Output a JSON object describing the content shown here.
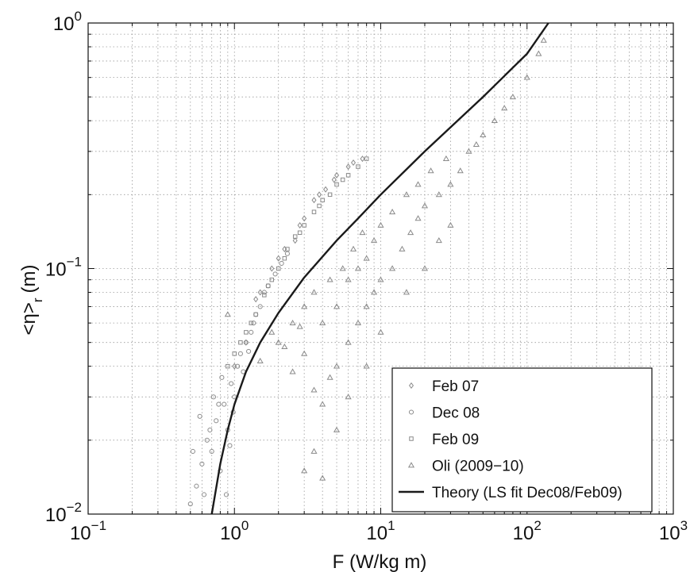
{
  "chart_data": {
    "type": "scatter",
    "x_scale": "log",
    "y_scale": "log",
    "xlim": [
      0.1,
      1000
    ],
    "ylim": [
      0.01,
      1
    ],
    "grid": true,
    "legend_position": "bottom-right",
    "xlabel": "F (W/kg m)",
    "ylabel_main": "<η>",
    "ylabel_sub": "r",
    "ylabel_unit": "(m)",
    "x_ticks": [
      {
        "base": "10",
        "exp": "−1",
        "value": 0.1
      },
      {
        "base": "10",
        "exp": "0",
        "value": 1
      },
      {
        "base": "10",
        "exp": "1",
        "value": 10
      },
      {
        "base": "10",
        "exp": "2",
        "value": 100
      },
      {
        "base": "10",
        "exp": "3",
        "value": 1000
      }
    ],
    "y_ticks": [
      {
        "base": "10",
        "exp": "−2",
        "value": 0.01
      },
      {
        "base": "10",
        "exp": "−1",
        "value": 0.1
      },
      {
        "base": "10",
        "exp": "0",
        "value": 1
      }
    ],
    "colors": {
      "points": "#8a8a8a",
      "theory": "#1a1a1a",
      "grid": "#9a9a9a"
    },
    "series": [
      {
        "name": "Feb 07",
        "marker": "diamond",
        "points": [
          [
            1.2,
            0.05
          ],
          [
            1.5,
            0.08
          ],
          [
            2.0,
            0.11
          ],
          [
            2.6,
            0.13
          ],
          [
            3.0,
            0.16
          ],
          [
            3.5,
            0.19
          ],
          [
            4.2,
            0.21
          ],
          [
            5.0,
            0.24
          ],
          [
            6.0,
            0.26
          ],
          [
            7.5,
            0.28
          ],
          [
            1.0,
            0.04
          ],
          [
            1.8,
            0.1
          ],
          [
            2.2,
            0.12
          ],
          [
            3.8,
            0.2
          ],
          [
            4.8,
            0.23
          ],
          [
            6.5,
            0.27
          ],
          [
            1.4,
            0.075
          ],
          [
            2.8,
            0.15
          ]
        ]
      },
      {
        "name": "Dec 08",
        "marker": "circle",
        "points": [
          [
            0.5,
            0.011
          ],
          [
            0.55,
            0.013
          ],
          [
            0.6,
            0.016
          ],
          [
            0.65,
            0.02
          ],
          [
            0.7,
            0.018
          ],
          [
            0.75,
            0.024
          ],
          [
            0.8,
            0.015
          ],
          [
            0.85,
            0.028
          ],
          [
            0.9,
            0.022
          ],
          [
            0.95,
            0.034
          ],
          [
            1.0,
            0.03
          ],
          [
            1.05,
            0.04
          ],
          [
            1.1,
            0.045
          ],
          [
            1.2,
            0.05
          ],
          [
            1.3,
            0.055
          ],
          [
            1.4,
            0.065
          ],
          [
            1.5,
            0.07
          ],
          [
            1.6,
            0.08
          ],
          [
            1.7,
            0.085
          ],
          [
            1.9,
            0.095
          ],
          [
            2.1,
            0.105
          ],
          [
            2.3,
            0.115
          ],
          [
            0.58,
            0.025
          ],
          [
            0.62,
            0.012
          ],
          [
            0.72,
            0.03
          ],
          [
            0.82,
            0.036
          ],
          [
            0.88,
            0.012
          ],
          [
            0.93,
            0.019
          ],
          [
            0.52,
            0.018
          ],
          [
            0.68,
            0.022
          ],
          [
            1.15,
            0.038
          ],
          [
            1.25,
            0.046
          ],
          [
            0.78,
            0.028
          ],
          [
            0.98,
            0.026
          ],
          [
            1.35,
            0.06
          ]
        ]
      },
      {
        "name": "Feb 09",
        "marker": "square",
        "points": [
          [
            1.0,
            0.045
          ],
          [
            1.2,
            0.055
          ],
          [
            1.4,
            0.065
          ],
          [
            1.6,
            0.078
          ],
          [
            1.8,
            0.09
          ],
          [
            2.0,
            0.1
          ],
          [
            2.3,
            0.12
          ],
          [
            2.6,
            0.135
          ],
          [
            3.0,
            0.15
          ],
          [
            3.5,
            0.17
          ],
          [
            4.0,
            0.19
          ],
          [
            4.5,
            0.2
          ],
          [
            5.0,
            0.22
          ],
          [
            5.5,
            0.23
          ],
          [
            6.0,
            0.24
          ],
          [
            7.0,
            0.26
          ],
          [
            8.0,
            0.28
          ],
          [
            0.9,
            0.04
          ],
          [
            1.1,
            0.05
          ],
          [
            1.3,
            0.06
          ],
          [
            1.7,
            0.085
          ],
          [
            2.2,
            0.11
          ],
          [
            2.8,
            0.14
          ],
          [
            3.8,
            0.18
          ]
        ]
      },
      {
        "name": "Oli (2009−10)",
        "marker": "triangle",
        "points": [
          [
            0.9,
            0.065
          ],
          [
            1.5,
            0.042
          ],
          [
            2.0,
            0.05
          ],
          [
            2.5,
            0.038
          ],
          [
            3.0,
            0.045
          ],
          [
            3.5,
            0.032
          ],
          [
            4.0,
            0.028
          ],
          [
            4.5,
            0.036
          ],
          [
            5.0,
            0.04
          ],
          [
            6.0,
            0.05
          ],
          [
            7.0,
            0.06
          ],
          [
            8.0,
            0.07
          ],
          [
            9.0,
            0.08
          ],
          [
            10.0,
            0.09
          ],
          [
            12.0,
            0.1
          ],
          [
            14.0,
            0.12
          ],
          [
            16.0,
            0.14
          ],
          [
            18.0,
            0.16
          ],
          [
            20.0,
            0.18
          ],
          [
            25.0,
            0.2
          ],
          [
            30.0,
            0.22
          ],
          [
            35.0,
            0.25
          ],
          [
            40.0,
            0.3
          ],
          [
            45.0,
            0.32
          ],
          [
            50.0,
            0.35
          ],
          [
            60.0,
            0.4
          ],
          [
            70.0,
            0.45
          ],
          [
            80.0,
            0.5
          ],
          [
            100.0,
            0.6
          ],
          [
            120.0,
            0.75
          ],
          [
            130.0,
            0.85
          ],
          [
            3.0,
            0.015
          ],
          [
            4.0,
            0.014
          ],
          [
            5.0,
            0.022
          ],
          [
            3.5,
            0.018
          ],
          [
            6.0,
            0.03
          ],
          [
            8.0,
            0.04
          ],
          [
            10.0,
            0.055
          ],
          [
            15.0,
            0.08
          ],
          [
            20.0,
            0.1
          ],
          [
            25.0,
            0.13
          ],
          [
            30.0,
            0.15
          ],
          [
            4.0,
            0.06
          ],
          [
            5.0,
            0.07
          ],
          [
            6.0,
            0.09
          ],
          [
            7.0,
            0.1
          ],
          [
            8.0,
            0.11
          ],
          [
            9.0,
            0.13
          ],
          [
            10.0,
            0.15
          ],
          [
            12.0,
            0.17
          ],
          [
            15.0,
            0.2
          ],
          [
            18.0,
            0.22
          ],
          [
            22.0,
            0.25
          ],
          [
            28.0,
            0.28
          ],
          [
            3.0,
            0.07
          ],
          [
            3.5,
            0.08
          ],
          [
            4.5,
            0.09
          ],
          [
            5.5,
            0.1
          ],
          [
            6.5,
            0.12
          ],
          [
            7.5,
            0.14
          ],
          [
            2.5,
            0.06
          ],
          [
            1.8,
            0.055
          ],
          [
            2.2,
            0.048
          ],
          [
            2.8,
            0.058
          ]
        ]
      }
    ],
    "theory": {
      "name": "Theory (LS fit Dec08/Feb09)",
      "points": [
        [
          0.7,
          0.01
        ],
        [
          0.8,
          0.016
        ],
        [
          0.9,
          0.022
        ],
        [
          1.0,
          0.028
        ],
        [
          1.2,
          0.038
        ],
        [
          1.5,
          0.05
        ],
        [
          2.0,
          0.066
        ],
        [
          3.0,
          0.092
        ],
        [
          5.0,
          0.13
        ],
        [
          7.0,
          0.16
        ],
        [
          10.0,
          0.2
        ],
        [
          20.0,
          0.3
        ],
        [
          50.0,
          0.5
        ],
        [
          100.0,
          0.75
        ],
        [
          140.0,
          1.0
        ]
      ]
    }
  }
}
